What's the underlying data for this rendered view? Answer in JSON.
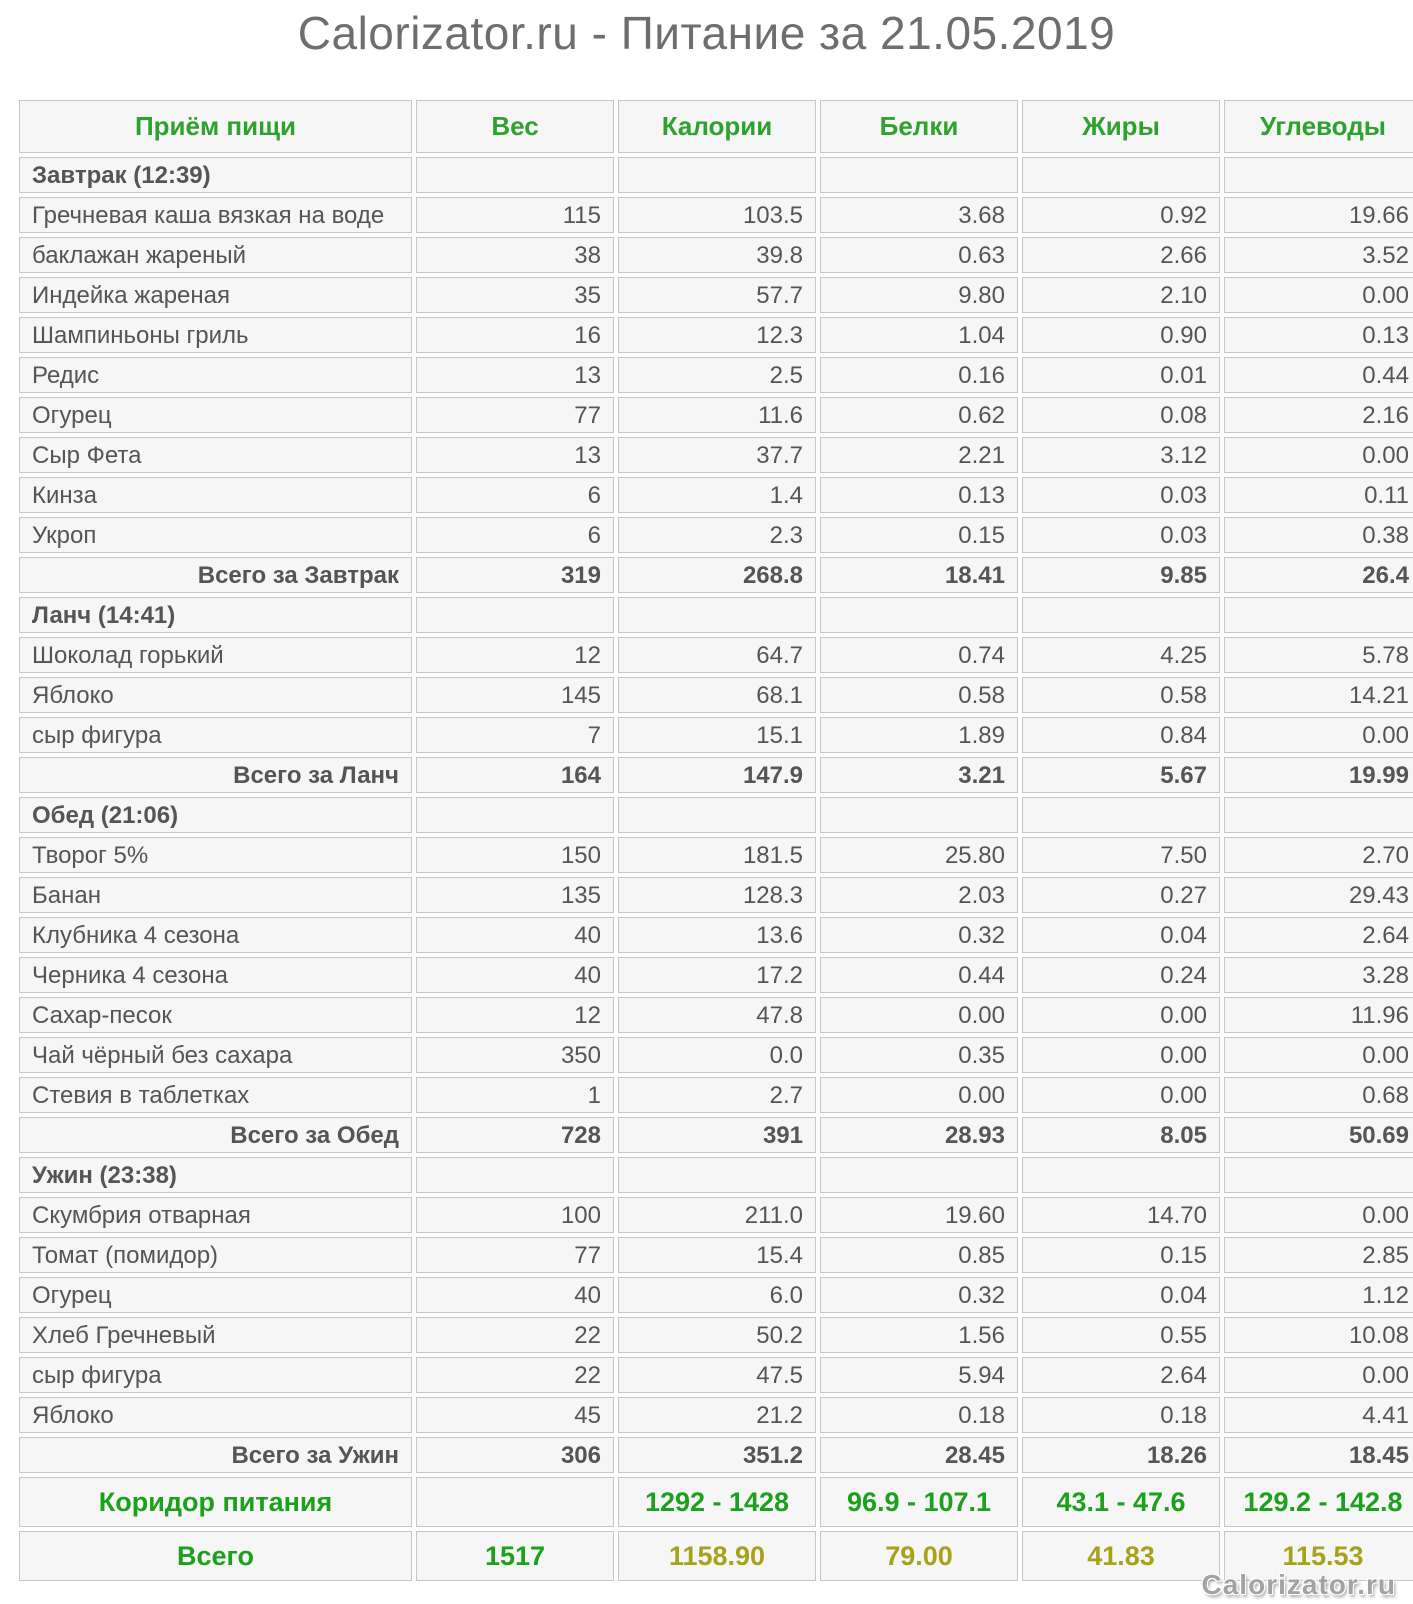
{
  "title": "Calorizator.ru - Питание за 21.05.2019",
  "watermark": "Calorizator.ru",
  "colors": {
    "header_green": "#2fa12f",
    "corridor_green": "#1ba11b",
    "total_olive": "#a8a21b",
    "body_text": "#555555",
    "cell_border": "#c7c7c7",
    "cell_background": "#f6f6f6",
    "title_gray": "#6e6e6e",
    "watermark_gray": "#a3a3a3"
  },
  "table": {
    "headers": [
      "Приём пищи",
      "Вес",
      "Калории",
      "Белки",
      "Жиры",
      "Углеводы"
    ],
    "sections": [
      {
        "name": "Завтрак (12:39)",
        "items": [
          {
            "name": "Гречневая каша вязкая на воде",
            "values": [
              "115",
              "103.5",
              "3.68",
              "0.92",
              "19.66"
            ]
          },
          {
            "name": "баклажан жареный",
            "values": [
              "38",
              "39.8",
              "0.63",
              "2.66",
              "3.52"
            ]
          },
          {
            "name": "Индейка жареная",
            "values": [
              "35",
              "57.7",
              "9.80",
              "2.10",
              "0.00"
            ]
          },
          {
            "name": "Шампиньоны гриль",
            "values": [
              "16",
              "12.3",
              "1.04",
              "0.90",
              "0.13"
            ]
          },
          {
            "name": "Редис",
            "values": [
              "13",
              "2.5",
              "0.16",
              "0.01",
              "0.44"
            ]
          },
          {
            "name": "Огурец",
            "values": [
              "77",
              "11.6",
              "0.62",
              "0.08",
              "2.16"
            ]
          },
          {
            "name": "Сыр Фета",
            "values": [
              "13",
              "37.7",
              "2.21",
              "3.12",
              "0.00"
            ]
          },
          {
            "name": "Кинза",
            "values": [
              "6",
              "1.4",
              "0.13",
              "0.03",
              "0.11"
            ]
          },
          {
            "name": "Укроп",
            "values": [
              "6",
              "2.3",
              "0.15",
              "0.03",
              "0.38"
            ]
          }
        ],
        "total_label": "Всего за Завтрак",
        "total": [
          "319",
          "268.8",
          "18.41",
          "9.85",
          "26.4"
        ]
      },
      {
        "name": "Ланч (14:41)",
        "items": [
          {
            "name": "Шоколад горький",
            "values": [
              "12",
              "64.7",
              "0.74",
              "4.25",
              "5.78"
            ]
          },
          {
            "name": "Яблоко",
            "values": [
              "145",
              "68.1",
              "0.58",
              "0.58",
              "14.21"
            ]
          },
          {
            "name": "сыр фигура",
            "values": [
              "7",
              "15.1",
              "1.89",
              "0.84",
              "0.00"
            ]
          }
        ],
        "total_label": "Всего за Ланч",
        "total": [
          "164",
          "147.9",
          "3.21",
          "5.67",
          "19.99"
        ]
      },
      {
        "name": "Обед (21:06)",
        "items": [
          {
            "name": "Творог 5%",
            "values": [
              "150",
              "181.5",
              "25.80",
              "7.50",
              "2.70"
            ]
          },
          {
            "name": "Банан",
            "values": [
              "135",
              "128.3",
              "2.03",
              "0.27",
              "29.43"
            ]
          },
          {
            "name": "Клубника 4 сезона",
            "values": [
              "40",
              "13.6",
              "0.32",
              "0.04",
              "2.64"
            ]
          },
          {
            "name": "Черника 4 сезона",
            "values": [
              "40",
              "17.2",
              "0.44",
              "0.24",
              "3.28"
            ]
          },
          {
            "name": "Сахар-песок",
            "values": [
              "12",
              "47.8",
              "0.00",
              "0.00",
              "11.96"
            ]
          },
          {
            "name": "Чай чёрный без сахара",
            "values": [
              "350",
              "0.0",
              "0.35",
              "0.00",
              "0.00"
            ]
          },
          {
            "name": "Стевия в таблетках",
            "values": [
              "1",
              "2.7",
              "0.00",
              "0.00",
              "0.68"
            ]
          }
        ],
        "total_label": "Всего за Обед",
        "total": [
          "728",
          "391",
          "28.93",
          "8.05",
          "50.69"
        ]
      },
      {
        "name": "Ужин (23:38)",
        "items": [
          {
            "name": "Скумбрия отварная",
            "values": [
              "100",
              "211.0",
              "19.60",
              "14.70",
              "0.00"
            ]
          },
          {
            "name": "Томат (помидор)",
            "values": [
              "77",
              "15.4",
              "0.85",
              "0.15",
              "2.85"
            ]
          },
          {
            "name": "Огурец",
            "values": [
              "40",
              "6.0",
              "0.32",
              "0.04",
              "1.12"
            ]
          },
          {
            "name": "Хлеб Гречневый",
            "values": [
              "22",
              "50.2",
              "1.56",
              "0.55",
              "10.08"
            ]
          },
          {
            "name": "сыр фигура",
            "values": [
              "22",
              "47.5",
              "5.94",
              "2.64",
              "0.00"
            ]
          },
          {
            "name": "Яблоко",
            "values": [
              "45",
              "21.2",
              "0.18",
              "0.18",
              "4.41"
            ]
          }
        ],
        "total_label": "Всего за Ужин",
        "total": [
          "306",
          "351.2",
          "28.45",
          "18.26",
          "18.45"
        ]
      }
    ],
    "corridor": {
      "label": "Коридор питания",
      "values": [
        "",
        "1292 - 1428",
        "96.9 - 107.1",
        "43.1 - 47.6",
        "129.2 - 142.8"
      ]
    },
    "grand_total": {
      "label": "Всего",
      "values": [
        "1517",
        "1158.90",
        "79.00",
        "41.83",
        "115.53"
      ]
    }
  }
}
